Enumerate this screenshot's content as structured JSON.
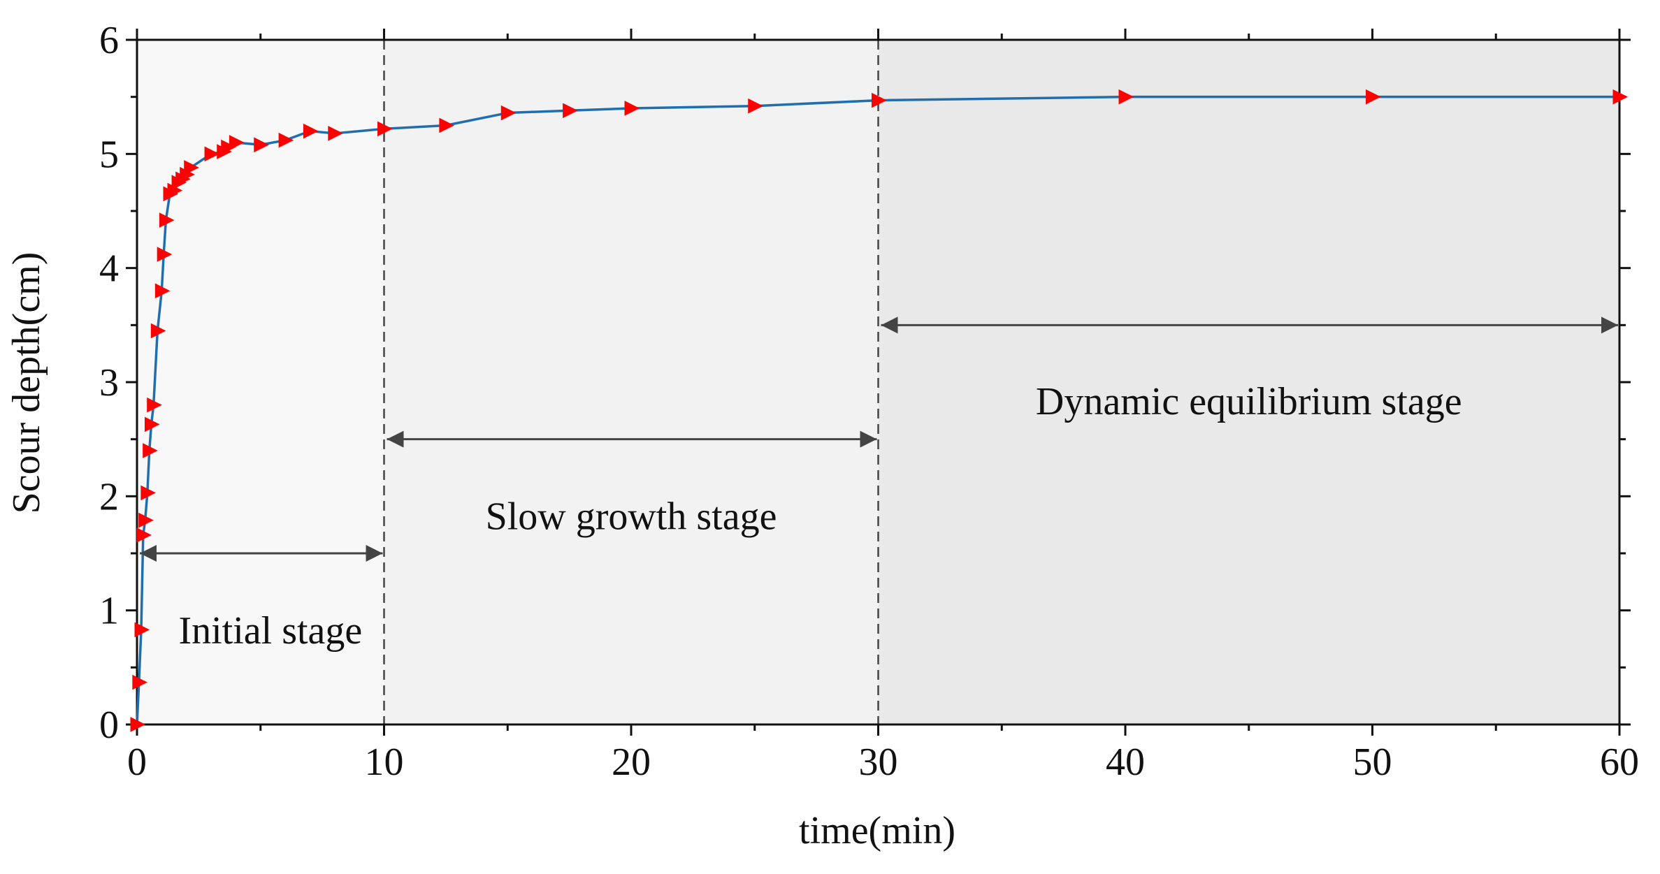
{
  "chart_data": {
    "type": "line",
    "title": "",
    "xlabel": "time(min)",
    "ylabel": "Scour depth(cm)",
    "xlim": [
      0,
      60
    ],
    "ylim": [
      0,
      6
    ],
    "x_ticks": [
      0,
      10,
      20,
      30,
      40,
      50,
      60
    ],
    "x_tick_labels": [
      "0",
      "10",
      "20",
      "30",
      "40",
      "50",
      "60"
    ],
    "y_ticks": [
      0,
      1,
      2,
      3,
      4,
      5,
      6
    ],
    "y_tick_labels": [
      "0",
      "1",
      "2",
      "3",
      "4",
      "5",
      "6"
    ],
    "grid": false,
    "line_color": "#1f6fb0",
    "marker_color": "#ff0000",
    "marker": "triangle-right",
    "series": [
      {
        "name": "Scour depth",
        "x": [
          0,
          0.08,
          0.17,
          0.25,
          0.33,
          0.42,
          0.5,
          0.58,
          0.67,
          0.83,
          1.0,
          1.08,
          1.17,
          1.33,
          1.5,
          1.67,
          1.83,
          2.0,
          2.17,
          3.0,
          3.5,
          3.67,
          4.0,
          5.0,
          6.0,
          7.0,
          8.0,
          10.0,
          12.5,
          15.0,
          17.5,
          20.0,
          25.0,
          30.0,
          40.0,
          50.0,
          60.0
        ],
        "values": [
          0,
          0.37,
          0.83,
          1.66,
          1.79,
          2.03,
          2.4,
          2.63,
          2.8,
          3.45,
          3.8,
          4.12,
          4.42,
          4.65,
          4.68,
          4.75,
          4.78,
          4.82,
          4.88,
          5.0,
          5.02,
          5.06,
          5.1,
          5.08,
          5.12,
          5.2,
          5.18,
          5.22,
          5.25,
          5.36,
          5.38,
          5.4,
          5.42,
          5.47,
          5.5,
          5.5,
          5.5
        ]
      }
    ],
    "stages": [
      {
        "label": "Initial stage",
        "x_start": 0,
        "x_end": 10,
        "shade": "#f8f8f8",
        "arrow_y": 1.5,
        "label_x": 5.4,
        "label_y": 0.82
      },
      {
        "label": "Slow growth stage",
        "x_start": 10,
        "x_end": 30,
        "shade": "#f2f2f2",
        "arrow_y": 2.5,
        "label_x": 20,
        "label_y": 1.82
      },
      {
        "label": "Dynamic equilibrium stage",
        "x_start": 30,
        "x_end": 60,
        "shade": "#e9e9e9",
        "arrow_y": 3.5,
        "label_x": 45,
        "label_y": 2.83
      }
    ],
    "stage_boundaries": [
      10,
      30
    ]
  }
}
